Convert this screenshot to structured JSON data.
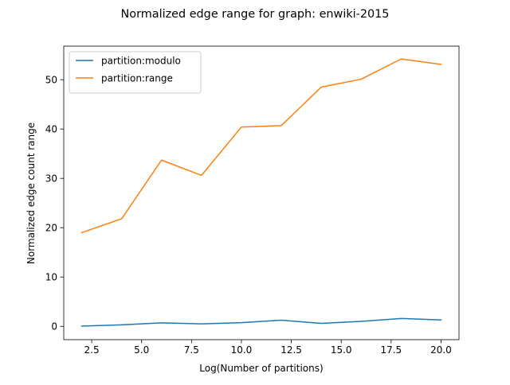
{
  "chart_data": {
    "type": "line",
    "title": "Normalized edge range for graph: enwiki-2015",
    "xlabel": "Log(Number of partitions)",
    "ylabel": "Normalized edge count range",
    "xlim": [
      1.1,
      20.9
    ],
    "ylim": [
      -2.7,
      56.8
    ],
    "xticks": [
      2.5,
      5.0,
      7.5,
      10.0,
      12.5,
      15.0,
      17.5,
      20.0
    ],
    "xtick_labels": [
      "2.5",
      "5.0",
      "7.5",
      "10.0",
      "12.5",
      "15.0",
      "17.5",
      "20.0"
    ],
    "yticks": [
      0,
      10,
      20,
      30,
      40,
      50
    ],
    "ytick_labels": [
      "0",
      "10",
      "20",
      "30",
      "40",
      "50"
    ],
    "grid": false,
    "legend_position": "top-left",
    "x": [
      2,
      4,
      6,
      8,
      10,
      12,
      14,
      16,
      18,
      20
    ],
    "series": [
      {
        "name": "partition:modulo",
        "color": "#1f77b4",
        "values": [
          0.05,
          0.3,
          0.7,
          0.5,
          0.75,
          1.25,
          0.6,
          1.0,
          1.6,
          1.3
        ]
      },
      {
        "name": "partition:range",
        "color": "#ff7f0e",
        "values": [
          19.0,
          21.8,
          33.7,
          30.6,
          40.4,
          40.7,
          48.5,
          50.1,
          54.2,
          53.1
        ]
      }
    ]
  }
}
